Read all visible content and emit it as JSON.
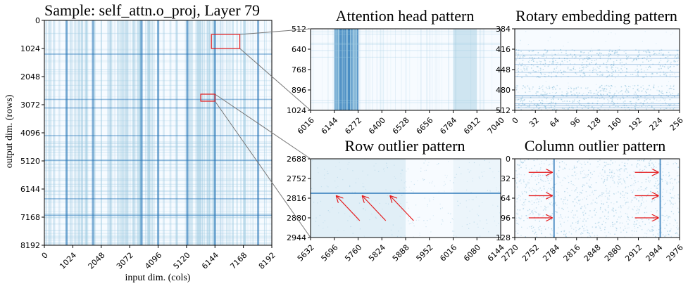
{
  "colors": {
    "heat_light": "#f7fbff",
    "heat_mid": "#9ecae1",
    "heat_dark": "#2171b5",
    "zoom_box": "#e31a1c",
    "connector": "#777777",
    "arrow": "#e41a1c"
  },
  "chart_data": [
    {
      "type": "heatmap",
      "title": "Sample: self_attn.o_proj, Layer 79",
      "xlabel": "input dim. (cols)",
      "ylabel": "output dim. (rows)",
      "xlim": [
        0,
        8192
      ],
      "ylim": [
        0,
        8192
      ],
      "x_ticks": [
        "0",
        "1024",
        "2048",
        "3072",
        "4096",
        "5120",
        "6144",
        "7168",
        "8192"
      ],
      "y_ticks": [
        "0",
        "1024",
        "2048",
        "3072",
        "4096",
        "5120",
        "6144",
        "7168",
        "8192"
      ],
      "dark_columns": [
        800,
        1750,
        3500,
        4100,
        5150,
        6144,
        7700
      ],
      "dark_rows": [
        1230,
        2880,
        3190,
        4200,
        5100,
        6500,
        7100
      ],
      "zoom_regions": [
        {
          "x": [
            6016,
            7040
          ],
          "y": [
            512,
            1024
          ]
        },
        {
          "x": [
            5632,
            6144
          ],
          "y": [
            2688,
            2944
          ]
        }
      ]
    },
    {
      "type": "heatmap",
      "title": "Attention head pattern",
      "xlim": [
        6016,
        7040
      ],
      "ylim": [
        512,
        1024
      ],
      "x_ticks": [
        "6016",
        "6144",
        "6272",
        "6400",
        "6528",
        "6656",
        "6784",
        "6912",
        "7040"
      ],
      "y_ticks": [
        "512",
        "640",
        "768",
        "896",
        "1024"
      ],
      "dark_bands_x": [
        [
          6144,
          6272
        ]
      ],
      "light_bands_x": [
        [
          6784,
          6912
        ]
      ]
    },
    {
      "type": "heatmap",
      "title": "Rotary embedding pattern",
      "xlim": [
        0,
        256
      ],
      "ylim": [
        384,
        512
      ],
      "x_ticks": [
        "0",
        "32",
        "64",
        "96",
        "128",
        "160",
        "192",
        "224",
        "256"
      ],
      "y_ticks": [
        "384",
        "416",
        "448",
        "480",
        "512"
      ],
      "dense_bands_y": [
        [
          416,
          460
        ],
        [
          472,
          512
        ]
      ]
    },
    {
      "type": "heatmap",
      "title": "Row outlier pattern",
      "xlim": [
        5632,
        6144
      ],
      "ylim": [
        2688,
        2944
      ],
      "x_ticks": [
        "5632",
        "5696",
        "5760",
        "5824",
        "5888",
        "5952",
        "6016",
        "6080",
        "6144"
      ],
      "y_ticks": [
        "2688",
        "2752",
        "2816",
        "2880",
        "2944"
      ],
      "outlier_row": 2800,
      "annotations": [
        "arrow",
        "arrow",
        "arrow"
      ]
    },
    {
      "type": "heatmap",
      "title": "Column outlier pattern",
      "xlim": [
        2720,
        2976
      ],
      "ylim": [
        0,
        128
      ],
      "x_ticks": [
        "2720",
        "2752",
        "2784",
        "2816",
        "2848",
        "2880",
        "2912",
        "2944",
        "2976"
      ],
      "y_ticks": [
        "0",
        "32",
        "64",
        "96",
        "128"
      ],
      "outlier_columns": [
        2781,
        2946
      ],
      "annotations": [
        "arrow",
        "arrow",
        "arrow",
        "arrow",
        "arrow",
        "arrow"
      ]
    }
  ]
}
